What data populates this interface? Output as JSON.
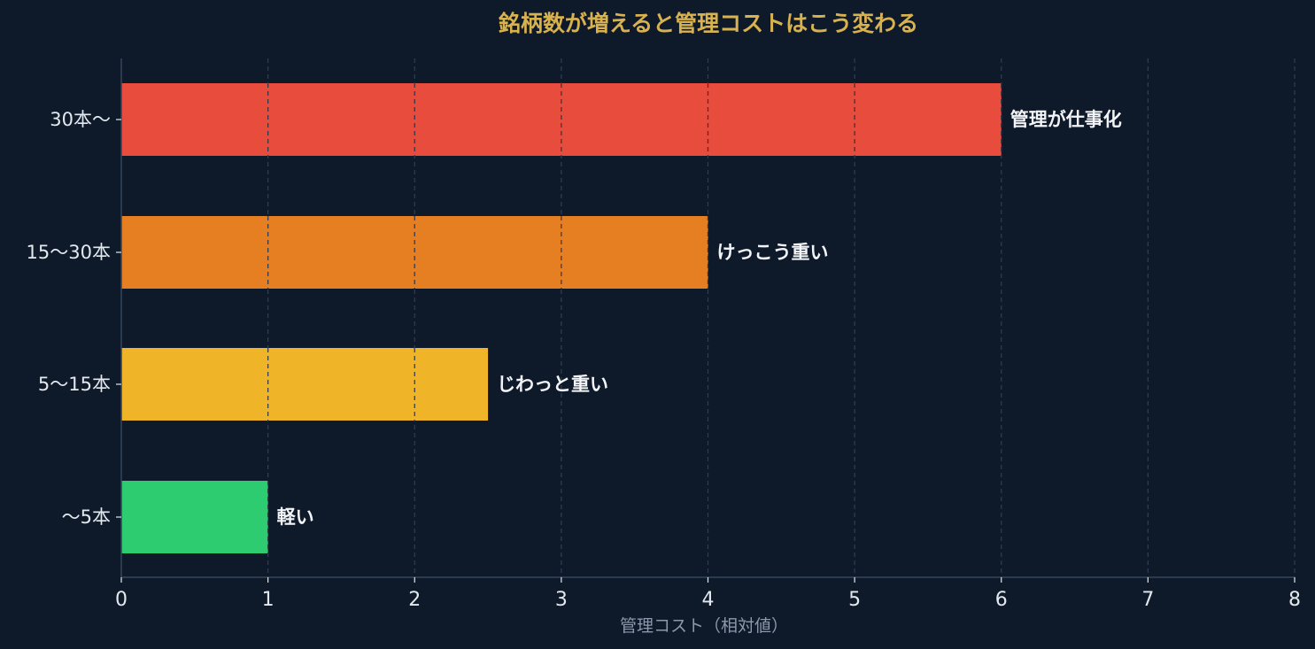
{
  "colors": {
    "background": "#0e1a2a",
    "title": "#d9b250",
    "tick_text": "#e3e8ee",
    "axis_label": "#8a99ab",
    "axis_line": "#33465c",
    "grid": "#2f3e52",
    "bar_label": "#f2f4f7"
  },
  "chart_data": {
    "type": "bar",
    "orientation": "horizontal",
    "title": "銘柄数が増えると管理コストはこう変わる",
    "xlabel": "管理コスト（相対値）",
    "ylabel": "",
    "xlim": [
      0,
      8
    ],
    "x_ticks": [
      "0",
      "1",
      "2",
      "3",
      "4",
      "5",
      "6",
      "7",
      "8"
    ],
    "grid": "vertical-dashed",
    "categories": [
      "30本〜",
      "15〜30本",
      "5〜15本",
      "〜5本"
    ],
    "values": [
      6,
      4,
      2.5,
      1
    ],
    "bar_labels": [
      "管理が仕事化",
      "けっこう重い",
      "じわっと重い",
      "軽い"
    ],
    "bar_colors": [
      "#e84c3d",
      "#e67e22",
      "#f0b429",
      "#2ecc71"
    ]
  }
}
